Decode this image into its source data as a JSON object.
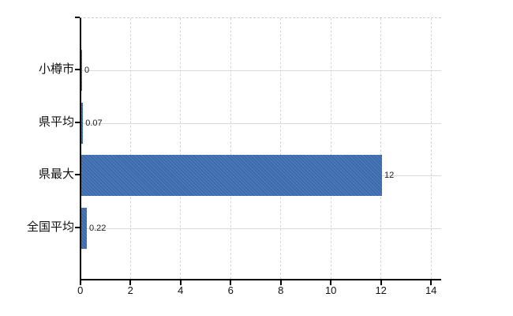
{
  "chart_data": {
    "type": "bar",
    "orientation": "horizontal",
    "categories": [
      "小樽市",
      "県平均",
      "県最大",
      "全国平均"
    ],
    "values": [
      0,
      0.07,
      12,
      0.22
    ],
    "value_labels": [
      "0",
      "0.07",
      "12",
      "0.22"
    ],
    "x_ticks": [
      0,
      2,
      4,
      6,
      8,
      10,
      12,
      14
    ],
    "x_tick_labels": [
      "0",
      "2",
      "4",
      "6",
      "8",
      "10",
      "12",
      "14"
    ],
    "xlim": [
      0,
      14.4
    ],
    "title": "",
    "xlabel": "",
    "ylabel": "",
    "grid": true,
    "legend": false,
    "colors": {
      "bar": "#3e6fb3",
      "axis": "#000000",
      "gridline": "#d9d9d9",
      "background": "#ffffff",
      "text": "#111111"
    }
  }
}
